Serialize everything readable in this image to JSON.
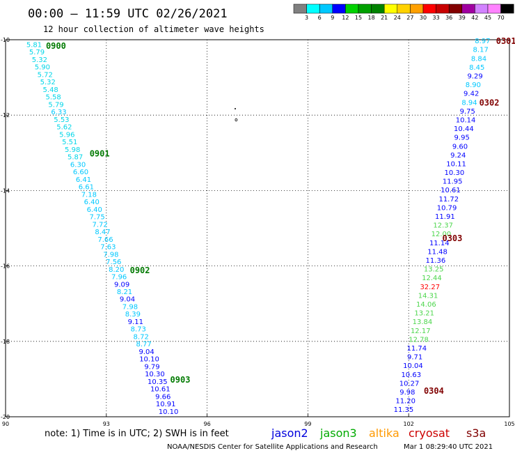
{
  "title": "00:00 – 11:59 UTC 02/26/2021",
  "subtitle": "12 hour collection of altimeter wave heights",
  "note": "note: 1) Time is in UTC; 2) SWH is in feet",
  "credit": "NOAA/NESDIS Center for Satellite Applications and Research",
  "timestamp": "Mar  1 08:29:40 UTC 2021",
  "legend": {
    "unit": "(ft)",
    "labels": [
      "3",
      "6",
      "9",
      "12",
      "15",
      "18",
      "21",
      "24",
      "27",
      "30",
      "33",
      "36",
      "39",
      "42",
      "45",
      "70"
    ],
    "colors": [
      "#808080",
      "#00ffff",
      "#00c8ff",
      "#0000ff",
      "#00d200",
      "#00a000",
      "#008200",
      "#ffff00",
      "#ffd200",
      "#ffa000",
      "#ff0000",
      "#c80000",
      "#820000",
      "#a000a0",
      "#d282ff",
      "#ff82ff",
      "#000000"
    ]
  },
  "satellites": [
    {
      "name": "jason2",
      "color": "#0000dd"
    },
    {
      "name": "jason3",
      "color": "#00aa00"
    },
    {
      "name": "altika",
      "color": "#ff9900"
    },
    {
      "name": "cryosat",
      "color": "#cc0000"
    },
    {
      "name": "s3a",
      "color": "#800000"
    }
  ],
  "chart_data": {
    "type": "scatter",
    "xlim": [
      90,
      105
    ],
    "ylim": [
      -20,
      -10
    ],
    "x_ticks": [
      "90",
      "93",
      "96",
      "99",
      "102",
      "105"
    ],
    "y_ticks": [
      "-10",
      "-12",
      "-14",
      "-16",
      "-18",
      "-20"
    ],
    "grid": true,
    "tracks": [
      {
        "values": [
          "5.81",
          "5.79",
          "5.32",
          "5.90",
          "5.72",
          "5.32",
          "5.48",
          "5.58",
          "5.79",
          "6.33",
          "5.53",
          "5.62",
          "5.96",
          "5.51",
          "5.98",
          "5.87",
          "6.30",
          "6.60",
          "6.41",
          "6.61",
          "7.18",
          "6.40",
          "6.40",
          "7.75",
          "7.72",
          "8.47",
          "7.66",
          "7.63",
          "7.98",
          "7.56",
          "8.20",
          "7.96",
          "9.09",
          "8.21",
          "9.04",
          "7.98",
          "8.39",
          "9.11",
          "8.73",
          "8.72",
          "8.77",
          "9.04",
          "10.10",
          "9.79",
          "10.30",
          "10.35",
          "10.61",
          "9.66",
          "10.91",
          "10.10"
        ],
        "lon_start": 90.85,
        "lat_start": -10.12,
        "lon_end": 94.85,
        "lat_end": -19.85,
        "time_labels": [
          {
            "text": "0900",
            "lon": 91.5,
            "lat": -10.15
          },
          {
            "text": "0901",
            "lon": 92.8,
            "lat": -13.0
          },
          {
            "text": "0902",
            "lon": 94.0,
            "lat": -16.1
          },
          {
            "text": "0903",
            "lon": 95.2,
            "lat": -19.0
          }
        ]
      },
      {
        "values": [
          "8.97",
          "8.17",
          "8.84",
          "8.45",
          "9.29",
          "8.90",
          "9.42",
          "8.94",
          "9.75",
          "10.14",
          "10.44",
          "9.95",
          "9.60",
          "9.24",
          "10.11",
          "10.30",
          "11.95",
          "10.61",
          "11.72",
          "10.79",
          "11.91",
          "12.37",
          "12.00",
          "11.14",
          "11.48",
          "11.36",
          "13.25",
          "12.44",
          "32.27",
          "14.31",
          "14.06",
          "13.21",
          "13.84",
          "12.17",
          "12.78",
          "11.74",
          "9.71",
          "10.04",
          "10.63",
          "10.27",
          "9.98",
          "11.20",
          "11.35"
        ],
        "lon_start": 104.2,
        "lat_start": -10.02,
        "lon_end": 101.85,
        "lat_end": -19.8,
        "time_labels": [
          {
            "text": "0301",
            "lon": 104.9,
            "lat": -10.02
          },
          {
            "text": "0302",
            "lon": 104.4,
            "lat": -11.65
          },
          {
            "text": "0303",
            "lon": 103.3,
            "lat": -15.25
          },
          {
            "text": "0304",
            "lon": 102.75,
            "lat": -19.3
          }
        ]
      }
    ]
  }
}
